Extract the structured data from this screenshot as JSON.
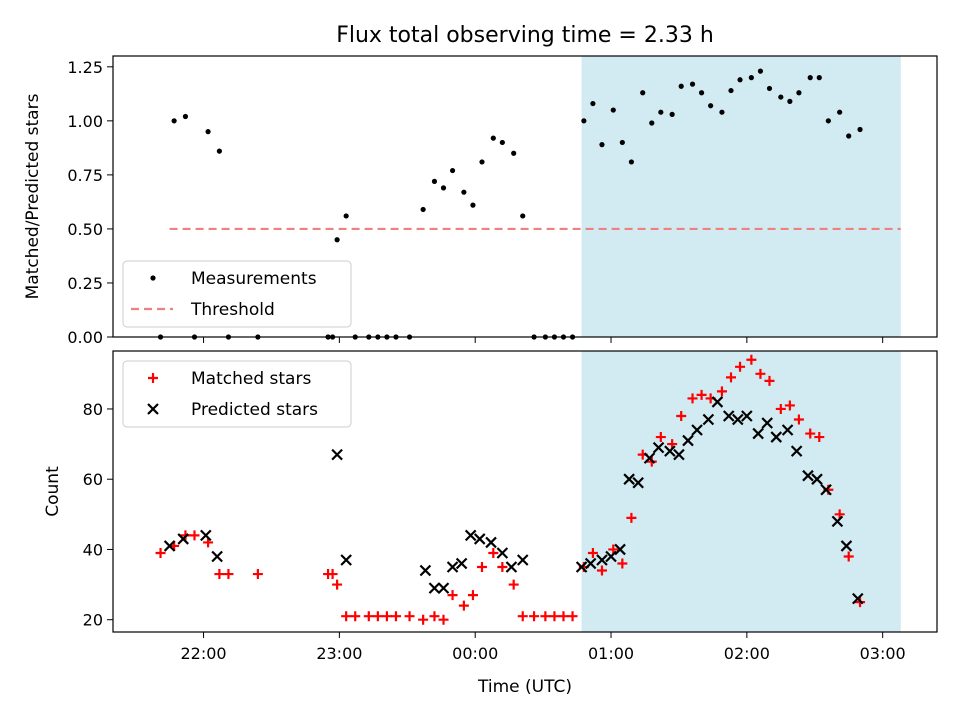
{
  "chart_data": {
    "title": "Flux total observing time = 2.33 h",
    "xlabel": "Time (UTC)",
    "xticks": [
      "22:00",
      "23:00",
      "00:00",
      "01:00",
      "02:00",
      "03:00"
    ],
    "xlim": [
      "21:20",
      "03:24"
    ],
    "shaded_interval": [
      "00:47",
      "03:08"
    ],
    "shade_color": "#add8e6",
    "panels": [
      {
        "type": "scatter",
        "ylabel": "Matched/Predicted stars",
        "ylim": [
          0,
          1.3
        ],
        "yticks": [
          "0.00",
          "0.25",
          "0.50",
          "0.75",
          "1.00",
          "1.25"
        ],
        "legend_position": "lower-left",
        "threshold": {
          "name": "Threshold",
          "value": 0.5,
          "x": [
            "21:45",
            "03:08"
          ],
          "color": "#f08080"
        },
        "series": [
          {
            "name": "Measurements",
            "marker": "dot",
            "color": "#000000",
            "points": [
              [
                "21:41",
                0.0
              ],
              [
                "21:47",
                1.0
              ],
              [
                "21:52",
                1.02
              ],
              [
                "21:56",
                0.0
              ],
              [
                "22:02",
                0.95
              ],
              [
                "22:07",
                0.86
              ],
              [
                "22:11",
                0.0
              ],
              [
                "22:24",
                0.0
              ],
              [
                "22:55",
                0.0
              ],
              [
                "22:57",
                0.0
              ],
              [
                "22:59",
                0.45
              ],
              [
                "23:03",
                0.56
              ],
              [
                "23:07",
                0.0
              ],
              [
                "23:13",
                0.0
              ],
              [
                "23:17",
                0.0
              ],
              [
                "23:21",
                0.0
              ],
              [
                "23:25",
                0.0
              ],
              [
                "23:31",
                0.0
              ],
              [
                "23:37",
                0.59
              ],
              [
                "23:42",
                0.72
              ],
              [
                "23:46",
                0.69
              ],
              [
                "23:50",
                0.77
              ],
              [
                "23:55",
                0.67
              ],
              [
                "23:59",
                0.61
              ],
              [
                "00:03",
                0.81
              ],
              [
                "00:08",
                0.92
              ],
              [
                "00:12",
                0.9
              ],
              [
                "00:17",
                0.85
              ],
              [
                "00:21",
                0.56
              ],
              [
                "00:26",
                0.0
              ],
              [
                "00:31",
                0.0
              ],
              [
                "00:35",
                0.0
              ],
              [
                "00:39",
                0.0
              ],
              [
                "00:43",
                0.0
              ],
              [
                "00:48",
                1.0
              ],
              [
                "00:52",
                1.08
              ],
              [
                "00:56",
                0.89
              ],
              [
                "01:01",
                1.05
              ],
              [
                "01:05",
                0.9
              ],
              [
                "01:09",
                0.81
              ],
              [
                "01:14",
                1.13
              ],
              [
                "01:18",
                0.99
              ],
              [
                "01:22",
                1.04
              ],
              [
                "01:27",
                1.03
              ],
              [
                "01:31",
                1.16
              ],
              [
                "01:36",
                1.17
              ],
              [
                "01:40",
                1.13
              ],
              [
                "01:44",
                1.07
              ],
              [
                "01:49",
                1.04
              ],
              [
                "01:53",
                1.14
              ],
              [
                "01:57",
                1.19
              ],
              [
                "02:02",
                1.2
              ],
              [
                "02:06",
                1.23
              ],
              [
                "02:10",
                1.15
              ],
              [
                "02:15",
                1.11
              ],
              [
                "02:19",
                1.09
              ],
              [
                "02:23",
                1.13
              ],
              [
                "02:28",
                1.2
              ],
              [
                "02:32",
                1.2
              ],
              [
                "02:36",
                1.0
              ],
              [
                "02:41",
                1.04
              ],
              [
                "02:45",
                0.93
              ],
              [
                "02:50",
                0.96
              ]
            ]
          }
        ]
      },
      {
        "type": "scatter",
        "ylabel": "Count",
        "ylim": [
          16.5,
          96.5
        ],
        "yticks": [
          "20",
          "40",
          "60",
          "80"
        ],
        "legend_position": "upper-left",
        "series": [
          {
            "name": "Matched stars",
            "marker": "plus",
            "color": "#ff0000",
            "points": [
              [
                "21:41",
                39
              ],
              [
                "21:47",
                41
              ],
              [
                "21:52",
                44
              ],
              [
                "21:56",
                44
              ],
              [
                "22:02",
                42
              ],
              [
                "22:07",
                33
              ],
              [
                "22:11",
                33
              ],
              [
                "22:24",
                33
              ],
              [
                "22:55",
                33
              ],
              [
                "22:57",
                33
              ],
              [
                "22:59",
                30
              ],
              [
                "23:03",
                21
              ],
              [
                "23:07",
                21
              ],
              [
                "23:13",
                21
              ],
              [
                "23:17",
                21
              ],
              [
                "23:21",
                21
              ],
              [
                "23:25",
                21
              ],
              [
                "23:31",
                21
              ],
              [
                "23:37",
                20
              ],
              [
                "23:42",
                21
              ],
              [
                "23:46",
                20
              ],
              [
                "23:50",
                27
              ],
              [
                "23:55",
                24
              ],
              [
                "23:59",
                27
              ],
              [
                "00:03",
                35
              ],
              [
                "00:08",
                39
              ],
              [
                "00:12",
                35
              ],
              [
                "00:17",
                30
              ],
              [
                "00:21",
                21
              ],
              [
                "00:26",
                21
              ],
              [
                "00:31",
                21
              ],
              [
                "00:35",
                21
              ],
              [
                "00:39",
                21
              ],
              [
                "00:43",
                21
              ],
              [
                "00:48",
                35
              ],
              [
                "00:52",
                39
              ],
              [
                "00:56",
                34
              ],
              [
                "01:01",
                40
              ],
              [
                "01:05",
                36
              ],
              [
                "01:09",
                49
              ],
              [
                "01:14",
                67
              ],
              [
                "01:18",
                65
              ],
              [
                "01:22",
                72
              ],
              [
                "01:27",
                70
              ],
              [
                "01:31",
                78
              ],
              [
                "01:36",
                83
              ],
              [
                "01:40",
                84
              ],
              [
                "01:44",
                83
              ],
              [
                "01:49",
                85
              ],
              [
                "01:53",
                89
              ],
              [
                "01:57",
                92
              ],
              [
                "02:02",
                94
              ],
              [
                "02:06",
                90
              ],
              [
                "02:10",
                88
              ],
              [
                "02:15",
                80
              ],
              [
                "02:19",
                81
              ],
              [
                "02:23",
                77
              ],
              [
                "02:28",
                73
              ],
              [
                "02:32",
                72
              ],
              [
                "02:36",
                57
              ],
              [
                "02:41",
                50
              ],
              [
                "02:45",
                38
              ],
              [
                "02:50",
                25
              ]
            ]
          },
          {
            "name": "Predicted stars",
            "marker": "cross",
            "color": "#000000",
            "points": [
              [
                "21:45",
                41
              ],
              [
                "21:51",
                43
              ],
              [
                "22:01",
                44
              ],
              [
                "22:06",
                38
              ],
              [
                "22:59",
                67
              ],
              [
                "23:03",
                37
              ],
              [
                "23:38",
                34
              ],
              [
                "23:42",
                29
              ],
              [
                "23:46",
                29
              ],
              [
                "23:50",
                35
              ],
              [
                "23:54",
                36
              ],
              [
                "23:58",
                44
              ],
              [
                "00:02",
                43
              ],
              [
                "00:07",
                42
              ],
              [
                "00:12",
                39
              ],
              [
                "00:16",
                35
              ],
              [
                "00:21",
                37
              ],
              [
                "00:47",
                35
              ],
              [
                "00:51",
                36
              ],
              [
                "00:56",
                37
              ],
              [
                "01:00",
                38
              ],
              [
                "01:04",
                40
              ],
              [
                "01:08",
                60
              ],
              [
                "01:12",
                59
              ],
              [
                "01:17",
                66
              ],
              [
                "01:21",
                69
              ],
              [
                "01:26",
                68
              ],
              [
                "01:30",
                67
              ],
              [
                "01:34",
                71
              ],
              [
                "01:38",
                74
              ],
              [
                "01:43",
                77
              ],
              [
                "01:47",
                82
              ],
              [
                "01:52",
                78
              ],
              [
                "01:56",
                77
              ],
              [
                "02:00",
                78
              ],
              [
                "02:05",
                73
              ],
              [
                "02:09",
                76
              ],
              [
                "02:13",
                72
              ],
              [
                "02:18",
                74
              ],
              [
                "02:22",
                68
              ],
              [
                "02:27",
                61
              ],
              [
                "02:31",
                60
              ],
              [
                "02:35",
                57
              ],
              [
                "02:40",
                48
              ],
              [
                "02:44",
                41
              ],
              [
                "02:49",
                26
              ]
            ]
          }
        ]
      }
    ]
  }
}
